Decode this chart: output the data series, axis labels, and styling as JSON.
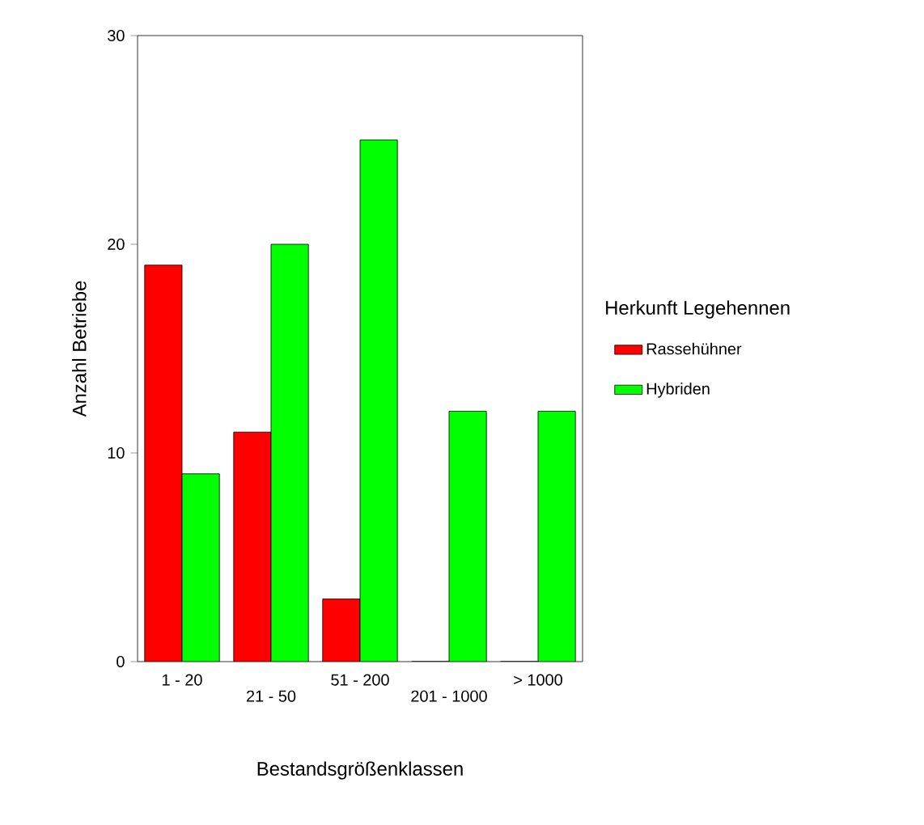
{
  "chart_data": {
    "type": "bar",
    "xlabel": "Bestandsgrößenklassen",
    "ylabel": "Anzahl Betriebe",
    "legend_title": "Herkunft Legehennen",
    "categories": [
      "1 - 20",
      "21 - 50",
      "51 - 200",
      "201 - 1000",
      "> 1000"
    ],
    "series": [
      {
        "name": "Rassehühner",
        "color": "#ff0000",
        "values": [
          19,
          11,
          3,
          0,
          0
        ]
      },
      {
        "name": "Hybriden",
        "color": "#00ff00",
        "values": [
          9,
          20,
          25,
          12,
          12
        ]
      }
    ],
    "ylim": [
      0,
      30
    ],
    "yticks": [
      0,
      10,
      20,
      30
    ],
    "grid": false,
    "legend": "right"
  }
}
